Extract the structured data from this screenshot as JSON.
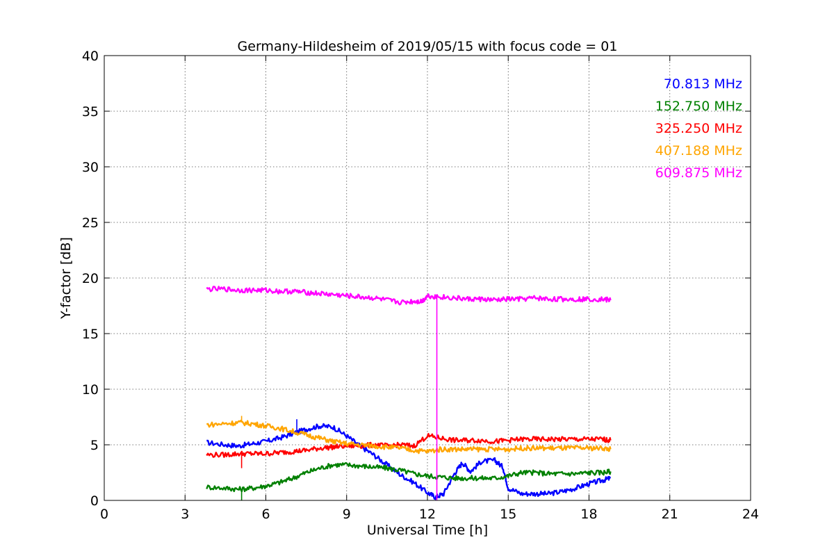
{
  "chart_data": {
    "type": "line",
    "title": "Germany-Hildesheim of 2019/05/15 with focus code = 01",
    "xlabel": "Universal Time [h]",
    "ylabel": "Y-factor [dB]",
    "xlim": [
      0,
      24
    ],
    "ylim": [
      0,
      40
    ],
    "xticks": [
      0,
      3,
      6,
      9,
      12,
      15,
      18,
      21,
      24
    ],
    "yticks": [
      0,
      5,
      10,
      15,
      20,
      25,
      30,
      35,
      40
    ],
    "grid": true,
    "legend_position": "top-right",
    "series": [
      {
        "name": "70.813 MHz",
        "color": "#0000ff",
        "x": [
          3.8,
          4.5,
          5.0,
          5.5,
          6.0,
          6.5,
          7.0,
          7.5,
          8.0,
          8.5,
          9.0,
          9.5,
          10.0,
          10.5,
          11.0,
          11.5,
          12.0,
          12.3,
          12.6,
          13.0,
          13.3,
          13.6,
          14.0,
          14.5,
          14.8,
          15.0,
          15.5,
          16.0,
          16.5,
          17.0,
          17.5,
          18.0,
          18.5,
          18.8
        ],
        "y": [
          5.2,
          5.0,
          4.9,
          5.1,
          5.3,
          5.6,
          6.0,
          6.4,
          6.7,
          6.6,
          5.8,
          4.9,
          4.1,
          3.2,
          2.3,
          1.6,
          0.7,
          0.3,
          0.6,
          2.4,
          3.4,
          2.6,
          3.5,
          3.6,
          3.0,
          1.1,
          0.6,
          0.6,
          0.6,
          0.8,
          1.1,
          1.5,
          1.8,
          2.0
        ]
      },
      {
        "name": "152.750 MHz",
        "color": "#008000",
        "x": [
          3.8,
          4.5,
          5.0,
          5.5,
          6.0,
          6.5,
          7.0,
          7.5,
          8.0,
          8.5,
          9.0,
          9.5,
          10.0,
          10.5,
          11.0,
          11.5,
          12.0,
          12.5,
          13.0,
          13.5,
          14.0,
          14.5,
          15.0,
          15.5,
          16.0,
          16.5,
          17.0,
          17.5,
          18.0,
          18.5,
          18.8
        ],
        "y": [
          1.2,
          1.1,
          1.0,
          1.1,
          1.3,
          1.6,
          2.0,
          2.5,
          2.9,
          3.2,
          3.2,
          3.1,
          3.0,
          2.9,
          2.7,
          2.4,
          2.2,
          2.1,
          2.0,
          2.0,
          2.0,
          2.0,
          2.2,
          2.5,
          2.5,
          2.4,
          2.4,
          2.4,
          2.5,
          2.5,
          2.6
        ]
      },
      {
        "name": "325.250 MHz",
        "color": "#ff0000",
        "x": [
          3.8,
          4.5,
          5.0,
          5.5,
          6.0,
          6.5,
          7.0,
          7.5,
          8.0,
          8.5,
          9.0,
          9.5,
          10.0,
          10.5,
          11.0,
          11.5,
          12.0,
          12.5,
          13.0,
          13.5,
          14.0,
          14.5,
          15.0,
          15.5,
          16.0,
          16.5,
          17.0,
          17.5,
          18.0,
          18.5,
          18.8
        ],
        "y": [
          4.1,
          4.1,
          4.2,
          4.2,
          4.2,
          4.3,
          4.4,
          4.5,
          4.7,
          4.8,
          4.9,
          4.9,
          5.0,
          4.9,
          5.0,
          4.9,
          5.8,
          5.6,
          5.4,
          5.4,
          5.4,
          5.3,
          5.4,
          5.5,
          5.5,
          5.5,
          5.5,
          5.5,
          5.5,
          5.5,
          5.4
        ]
      },
      {
        "name": "407.188 MHz",
        "color": "#ffa500",
        "x": [
          3.8,
          4.5,
          5.0,
          5.5,
          6.0,
          6.5,
          7.0,
          7.5,
          8.0,
          8.5,
          9.0,
          9.5,
          10.0,
          10.5,
          11.0,
          11.5,
          12.0,
          12.5,
          13.0,
          13.5,
          14.0,
          14.5,
          15.0,
          15.5,
          16.0,
          16.5,
          17.0,
          17.5,
          18.0,
          18.5,
          18.8
        ],
        "y": [
          6.8,
          6.9,
          7.0,
          6.9,
          6.7,
          6.5,
          6.2,
          5.9,
          5.6,
          5.3,
          5.1,
          5.0,
          4.9,
          4.8,
          4.7,
          4.5,
          4.4,
          4.6,
          4.6,
          4.6,
          4.6,
          4.6,
          4.6,
          4.7,
          4.7,
          4.7,
          4.7,
          4.7,
          4.7,
          4.7,
          4.6
        ]
      },
      {
        "name": "609.875 MHz",
        "color": "#ff00ff",
        "x": [
          3.8,
          4.5,
          5.0,
          5.5,
          6.0,
          6.5,
          7.0,
          7.5,
          8.0,
          8.5,
          9.0,
          9.5,
          10.0,
          10.5,
          11.0,
          11.5,
          11.8,
          12.0,
          12.5,
          13.0,
          13.5,
          14.0,
          14.5,
          15.0,
          15.5,
          16.0,
          16.5,
          17.0,
          17.5,
          18.0,
          18.5,
          18.8
        ],
        "y": [
          19.0,
          19.0,
          18.9,
          18.9,
          18.9,
          18.8,
          18.8,
          18.7,
          18.6,
          18.5,
          18.4,
          18.3,
          18.2,
          18.0,
          17.8,
          17.9,
          17.9,
          18.4,
          18.3,
          18.2,
          18.1,
          18.1,
          18.0,
          18.1,
          18.1,
          18.2,
          18.1,
          18.1,
          18.1,
          18.1,
          18.1,
          18.0
        ]
      }
    ],
    "spikes": [
      {
        "series": "609.875 MHz",
        "x": 12.35,
        "from": 18.3,
        "to": 0.0
      },
      {
        "series": "325.250 MHz",
        "x": 5.1,
        "from": 4.2,
        "to": 2.9
      },
      {
        "series": "152.750 MHz",
        "x": 5.1,
        "from": 1.0,
        "to": 0.0
      },
      {
        "series": "407.188 MHz",
        "x": 5.1,
        "from": 7.0,
        "to": 7.6
      },
      {
        "series": "70.813 MHz",
        "x": 7.15,
        "from": 6.1,
        "to": 7.3
      }
    ]
  }
}
